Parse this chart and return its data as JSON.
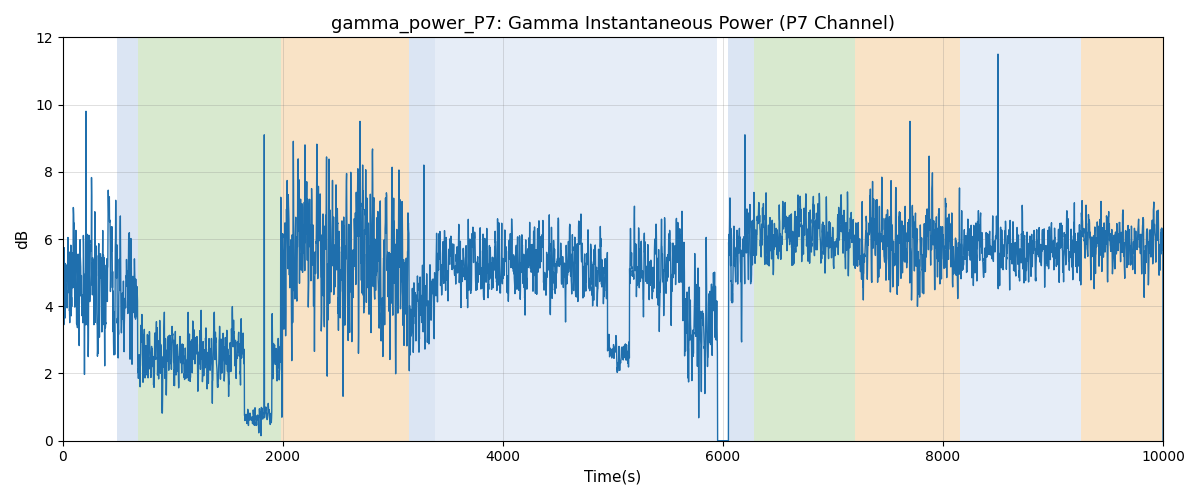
{
  "title": "gamma_power_P7: Gamma Instantaneous Power (P7 Channel)",
  "xlabel": "Time(s)",
  "ylabel": "dB",
  "xlim": [
    0,
    10000
  ],
  "ylim": [
    0,
    12
  ],
  "yticks": [
    0,
    2,
    4,
    6,
    8,
    10,
    12
  ],
  "xticks": [
    0,
    2000,
    4000,
    6000,
    8000,
    10000
  ],
  "line_color": "#1f6fad",
  "line_width": 1.0,
  "bg_color": "#ffffff",
  "title_fontsize": 13,
  "label_fontsize": 11,
  "bands": [
    {
      "xmin": 490,
      "xmax": 680,
      "color": "#c8d8ee",
      "alpha": 0.65
    },
    {
      "xmin": 680,
      "xmax": 1980,
      "color": "#b8d8a8",
      "alpha": 0.55
    },
    {
      "xmin": 1980,
      "xmax": 3150,
      "color": "#f5cc98",
      "alpha": 0.55
    },
    {
      "xmin": 3150,
      "xmax": 3380,
      "color": "#c8d8ee",
      "alpha": 0.65
    },
    {
      "xmin": 3380,
      "xmax": 5650,
      "color": "#c8d8ee",
      "alpha": 0.45
    },
    {
      "xmin": 5650,
      "xmax": 5950,
      "color": "#c8d8ee",
      "alpha": 0.45
    },
    {
      "xmin": 6050,
      "xmax": 6280,
      "color": "#c8d8ee",
      "alpha": 0.65
    },
    {
      "xmin": 6280,
      "xmax": 7200,
      "color": "#b8d8a8",
      "alpha": 0.55
    },
    {
      "xmin": 7200,
      "xmax": 8150,
      "color": "#f5cc98",
      "alpha": 0.55
    },
    {
      "xmin": 8150,
      "xmax": 9250,
      "color": "#c8d8ee",
      "alpha": 0.45
    },
    {
      "xmin": 9250,
      "xmax": 10000,
      "color": "#f5cc98",
      "alpha": 0.55
    }
  ],
  "seed": 77
}
